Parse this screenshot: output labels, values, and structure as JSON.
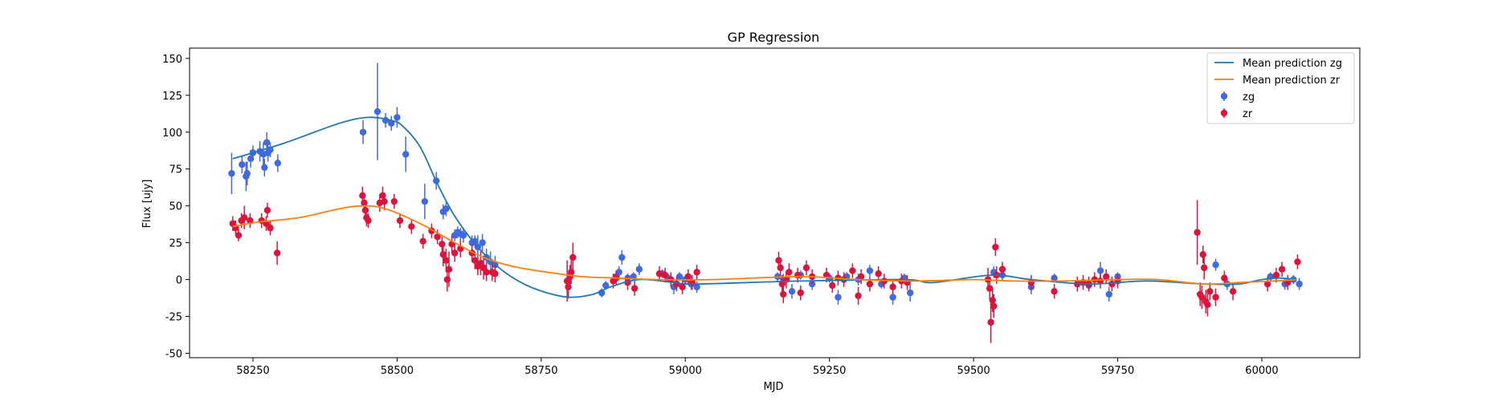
{
  "chart_data": {
    "type": "scatter",
    "title": "GP Regression",
    "xlabel": "MJD",
    "ylabel": "Flux [ujy]",
    "xlim": [
      58140,
      60170
    ],
    "ylim": [
      -53,
      157
    ],
    "xticks": [
      58250,
      58500,
      58750,
      59000,
      59250,
      59500,
      59750,
      60000
    ],
    "yticks": [
      -50,
      -25,
      0,
      25,
      50,
      75,
      100,
      125,
      150
    ],
    "grid": false,
    "legend_position": "top-right",
    "colors": {
      "mean_zg": "#1f77b4",
      "mean_zr": "#ff7f0e",
      "zg": "#4169e1",
      "zr": "#dc143c"
    },
    "lines": [
      {
        "name": "Mean prediction zg",
        "color": "#1f77b4",
        "x": [
          58215,
          58300,
          58400,
          58450,
          58490,
          58510,
          58540,
          58570,
          58600,
          58640,
          58680,
          58720,
          58760,
          58800,
          58840,
          58870,
          58920,
          58980,
          59020,
          59200,
          59380,
          59430,
          59530,
          59600,
          59700,
          59800,
          59900,
          59960,
          60000,
          60030,
          60060
        ],
        "y": [
          82,
          92,
          106,
          110,
          108,
          104,
          90,
          65,
          43,
          22,
          7,
          -3,
          -9,
          -12,
          -10,
          -5,
          0,
          -2,
          -3,
          -1,
          0,
          -2,
          3,
          0,
          -3,
          -1,
          -3,
          -3,
          0,
          1,
          0
        ]
      },
      {
        "name": "Mean prediction zr",
        "color": "#ff7f0e",
        "x": [
          58215,
          58260,
          58330,
          58400,
          58440,
          58480,
          58540,
          58600,
          58650,
          58700,
          58760,
          58820,
          58880,
          58950,
          59050,
          59200,
          59300,
          59400,
          59500,
          59570,
          59650,
          59750,
          59820,
          59900,
          59960,
          60020,
          60060
        ],
        "y": [
          36,
          39,
          42,
          48,
          50,
          48,
          38,
          25,
          15,
          9,
          5,
          2,
          1,
          0,
          0,
          2,
          0,
          -1,
          0,
          -1,
          -1,
          0,
          0,
          -3,
          -2,
          -1,
          0
        ]
      }
    ],
    "series": [
      {
        "name": "zg",
        "color": "#4169e1",
        "points": [
          [
            58213,
            72,
            14
          ],
          [
            58231,
            78,
            6
          ],
          [
            58238,
            70,
            10
          ],
          [
            58240,
            72,
            8
          ],
          [
            58246,
            82,
            6
          ],
          [
            58250,
            86,
            5
          ],
          [
            58262,
            87,
            7
          ],
          [
            58268,
            85,
            8
          ],
          [
            58270,
            76,
            6
          ],
          [
            58274,
            93,
            7
          ],
          [
            58276,
            86,
            6
          ],
          [
            58280,
            88,
            5
          ],
          [
            58293,
            79,
            6
          ],
          [
            58441,
            100,
            8
          ],
          [
            58466,
            114,
            33
          ],
          [
            58480,
            108,
            5
          ],
          [
            58490,
            106,
            5
          ],
          [
            58500,
            110,
            7
          ],
          [
            58515,
            85,
            12
          ],
          [
            58548,
            53,
            12
          ],
          [
            58568,
            67,
            6
          ],
          [
            58580,
            46,
            5
          ],
          [
            58585,
            48,
            5
          ],
          [
            58600,
            30,
            4
          ],
          [
            58605,
            32,
            4
          ],
          [
            58610,
            31,
            4
          ],
          [
            58615,
            30,
            5
          ],
          [
            58630,
            25,
            5
          ],
          [
            58635,
            26,
            4
          ],
          [
            58640,
            22,
            8
          ],
          [
            58648,
            25,
            6
          ],
          [
            58655,
            15,
            6
          ],
          [
            58662,
            12,
            7
          ],
          [
            58670,
            10,
            6
          ],
          [
            58855,
            -9,
            3
          ],
          [
            58862,
            -4,
            3
          ],
          [
            58880,
            2,
            3
          ],
          [
            58885,
            5,
            4
          ],
          [
            58890,
            15,
            5
          ],
          [
            58900,
            1,
            3
          ],
          [
            58910,
            2,
            3
          ],
          [
            58920,
            7,
            4
          ],
          [
            58960,
            4,
            3
          ],
          [
            58970,
            1,
            3
          ],
          [
            58980,
            -5,
            5
          ],
          [
            58990,
            2,
            3
          ],
          [
            59000,
            0,
            3
          ],
          [
            59010,
            -3,
            4
          ],
          [
            59020,
            -5,
            4
          ],
          [
            59160,
            2,
            3
          ],
          [
            59170,
            0,
            4
          ],
          [
            59185,
            -8,
            5
          ],
          [
            59200,
            3,
            3
          ],
          [
            59220,
            -3,
            4
          ],
          [
            59250,
            1,
            3
          ],
          [
            59265,
            -12,
            5
          ],
          [
            59280,
            2,
            3
          ],
          [
            59300,
            0,
            4
          ],
          [
            59320,
            6,
            4
          ],
          [
            59340,
            -3,
            3
          ],
          [
            59360,
            -12,
            5
          ],
          [
            59380,
            1,
            3
          ],
          [
            59390,
            -9,
            6
          ],
          [
            59535,
            5,
            4
          ],
          [
            59550,
            3,
            4
          ],
          [
            59600,
            -5,
            5
          ],
          [
            59640,
            1,
            3
          ],
          [
            59700,
            -4,
            4
          ],
          [
            59720,
            6,
            6
          ],
          [
            59735,
            -10,
            5
          ],
          [
            59750,
            2,
            3
          ],
          [
            59920,
            10,
            4
          ],
          [
            59940,
            -3,
            4
          ],
          [
            60015,
            2,
            3
          ],
          [
            60040,
            -3,
            4
          ],
          [
            60055,
            0,
            3
          ],
          [
            60065,
            -3,
            4
          ]
        ]
      },
      {
        "name": "zr",
        "color": "#dc143c",
        "points": [
          [
            58215,
            38,
            5
          ],
          [
            58220,
            35,
            5
          ],
          [
            58225,
            30,
            4
          ],
          [
            58230,
            40,
            5
          ],
          [
            58235,
            42,
            8
          ],
          [
            58245,
            40,
            5
          ],
          [
            58265,
            40,
            5
          ],
          [
            58273,
            38,
            5
          ],
          [
            58275,
            47,
            5
          ],
          [
            58280,
            35,
            5
          ],
          [
            58292,
            18,
            8
          ],
          [
            58440,
            57,
            6
          ],
          [
            58443,
            52,
            6
          ],
          [
            58445,
            47,
            6
          ],
          [
            58447,
            42,
            6
          ],
          [
            58450,
            40,
            5
          ],
          [
            58470,
            52,
            6
          ],
          [
            58475,
            57,
            6
          ],
          [
            58478,
            53,
            6
          ],
          [
            58495,
            53,
            5
          ],
          [
            58505,
            40,
            5
          ],
          [
            58525,
            36,
            5
          ],
          [
            58545,
            26,
            5
          ],
          [
            58560,
            33,
            5
          ],
          [
            58570,
            29,
            5
          ],
          [
            58578,
            24,
            5
          ],
          [
            58580,
            17,
            8
          ],
          [
            58585,
            13,
            8
          ],
          [
            58587,
            0,
            8
          ],
          [
            58590,
            7,
            12
          ],
          [
            58595,
            24,
            6
          ],
          [
            58600,
            18,
            6
          ],
          [
            58610,
            21,
            6
          ],
          [
            58630,
            18,
            6
          ],
          [
            58635,
            13,
            6
          ],
          [
            58640,
            9,
            6
          ],
          [
            58645,
            11,
            8
          ],
          [
            58650,
            8,
            8
          ],
          [
            58655,
            5,
            6
          ],
          [
            58665,
            5,
            6
          ],
          [
            58670,
            4,
            6
          ],
          [
            58795,
            -1,
            14
          ],
          [
            58797,
            -5,
            8
          ],
          [
            58800,
            2,
            8
          ],
          [
            58802,
            5,
            8
          ],
          [
            58805,
            15,
            10
          ],
          [
            58875,
            -1,
            5
          ],
          [
            58880,
            1,
            5
          ],
          [
            58900,
            -2,
            5
          ],
          [
            58912,
            -6,
            5
          ],
          [
            58955,
            4,
            5
          ],
          [
            58965,
            3,
            5
          ],
          [
            58975,
            0,
            5
          ],
          [
            58985,
            -3,
            5
          ],
          [
            58995,
            -5,
            5
          ],
          [
            59005,
            2,
            5
          ],
          [
            59012,
            -2,
            5
          ],
          [
            59020,
            5,
            5
          ],
          [
            59162,
            13,
            6
          ],
          [
            59165,
            8,
            6
          ],
          [
            59168,
            -3,
            6
          ],
          [
            59170,
            -10,
            6
          ],
          [
            59175,
            0,
            6
          ],
          [
            59180,
            5,
            6
          ],
          [
            59195,
            3,
            5
          ],
          [
            59200,
            -9,
            5
          ],
          [
            59210,
            8,
            5
          ],
          [
            59220,
            2,
            5
          ],
          [
            59245,
            3,
            5
          ],
          [
            59255,
            -4,
            5
          ],
          [
            59265,
            1,
            5
          ],
          [
            59275,
            0,
            5
          ],
          [
            59290,
            6,
            5
          ],
          [
            59300,
            -11,
            6
          ],
          [
            59305,
            2,
            5
          ],
          [
            59320,
            -3,
            5
          ],
          [
            59335,
            4,
            5
          ],
          [
            59345,
            -1,
            5
          ],
          [
            59360,
            -5,
            5
          ],
          [
            59375,
            -1,
            5
          ],
          [
            59385,
            -2,
            5
          ],
          [
            59525,
            0,
            8
          ],
          [
            59528,
            -6,
            8
          ],
          [
            59530,
            -29,
            14
          ],
          [
            59533,
            -14,
            8
          ],
          [
            59535,
            -18,
            8
          ],
          [
            59538,
            22,
            6
          ],
          [
            59540,
            3,
            6
          ],
          [
            59550,
            7,
            5
          ],
          [
            59600,
            -2,
            5
          ],
          [
            59640,
            -8,
            5
          ],
          [
            59680,
            -3,
            5
          ],
          [
            59690,
            -2,
            5
          ],
          [
            59700,
            -3,
            5
          ],
          [
            59710,
            0,
            5
          ],
          [
            59720,
            -1,
            5
          ],
          [
            59730,
            2,
            5
          ],
          [
            59740,
            -3,
            5
          ],
          [
            59750,
            -1,
            5
          ],
          [
            59888,
            32,
            22
          ],
          [
            59893,
            -10,
            8
          ],
          [
            59896,
            -12,
            8
          ],
          [
            59898,
            17,
            6
          ],
          [
            59900,
            8,
            8
          ],
          [
            59903,
            -15,
            8
          ],
          [
            59906,
            -17,
            8
          ],
          [
            59910,
            -8,
            6
          ],
          [
            59920,
            -12,
            6
          ],
          [
            59935,
            1,
            5
          ],
          [
            59950,
            -8,
            6
          ],
          [
            60010,
            -3,
            5
          ],
          [
            60025,
            3,
            5
          ],
          [
            60035,
            7,
            5
          ],
          [
            60045,
            -2,
            5
          ],
          [
            60062,
            12,
            5
          ]
        ]
      }
    ],
    "legend": [
      {
        "label": "Mean prediction zg",
        "kind": "line",
        "color": "#1f77b4"
      },
      {
        "label": "Mean prediction zr",
        "kind": "line",
        "color": "#ff7f0e"
      },
      {
        "label": "zg",
        "kind": "errorbar",
        "color": "#4169e1"
      },
      {
        "label": "zr",
        "kind": "errorbar",
        "color": "#dc143c"
      }
    ]
  }
}
